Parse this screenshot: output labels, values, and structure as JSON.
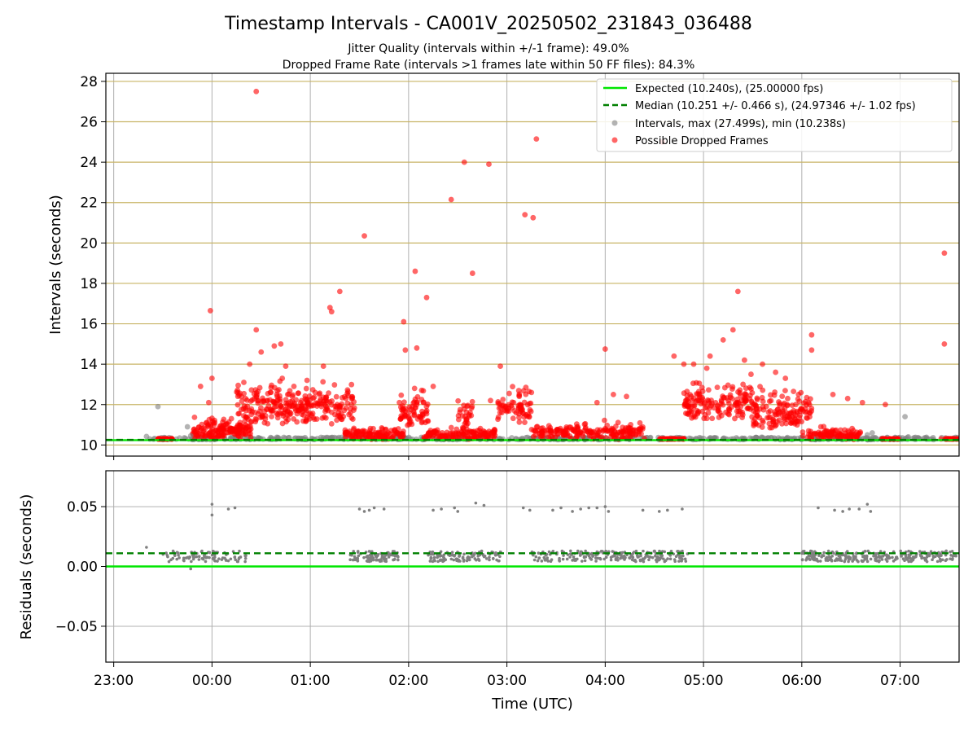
{
  "figure": {
    "title": "Timestamp Intervals - CA001V_20250502_231843_036488",
    "subtitle_1": "Jitter Quality (intervals within +/-1 frame): 49.0%",
    "subtitle_2": "Dropped Frame Rate (intervals >1 frames late within 50 FF files): 84.3%",
    "x_label": "Time (UTC)"
  },
  "colors": {
    "expected": "#00e600",
    "median": "#008000",
    "intervals": "#808080",
    "dropped": "#ff0000",
    "grid_top": "#c8b466",
    "grid_bottom": "#b0b0b0"
  },
  "chart_data": [
    {
      "type": "scatter",
      "panel": "top",
      "ylabel": "Intervals (seconds)",
      "xlabel": "",
      "ylim": [
        9.45,
        28.4
      ],
      "xlim_hours": [
        -1.08,
        7.6
      ],
      "x_tick_labels": [
        "23:00",
        "00:00",
        "01:00",
        "02:00",
        "03:00",
        "04:00",
        "05:00",
        "06:00",
        "07:00"
      ],
      "x_tick_hours": [
        -1,
        0,
        1,
        2,
        3,
        4,
        5,
        6,
        7
      ],
      "y_ticks": [
        10,
        12,
        14,
        16,
        18,
        20,
        22,
        24,
        26,
        28
      ],
      "y_tick_labels": [
        "10",
        "12",
        "14",
        "16",
        "18",
        "20",
        "22",
        "24",
        "26",
        "28"
      ],
      "grid": true,
      "legend_position": "top-right",
      "legend": [
        "Expected (10.240s), (25.00000 fps)",
        "Median (10.251 +/- 0.466 s), (24.97346 +/- 1.02 fps)",
        "Intervals, max (27.499s), min (10.238s)",
        "Possible Dropped Frames"
      ],
      "reference_lines": {
        "expected": 10.24,
        "median": 10.251
      },
      "series": [
        {
          "name": "Intervals, max (27.499s), min (10.238s)",
          "points": [
            [
              "23:20",
              10.42
            ],
            [
              "23:27",
              11.9
            ],
            [
              "23:45",
              10.9
            ],
            [
              "23:47",
              10.45
            ],
            [
              "06:40",
              10.5
            ],
            [
              "06:43",
              10.6
            ],
            [
              "07:03",
              11.4
            ],
            [
              "07:05",
              10.4
            ],
            [
              "23:22",
              10.3
            ],
            [
              "06:45",
              10.35
            ],
            [
              "07:10",
              10.3
            ]
          ]
        },
        {
          "name": "Possible Dropped Frames",
          "points": [
            [
              "23:59",
              16.65
            ],
            [
              "23:58",
              12.1
            ],
            [
              "00:00",
              13.3
            ],
            [
              "23:53",
              12.9
            ],
            [
              "00:27",
              27.5
            ],
            [
              "00:27",
              15.7
            ],
            [
              "00:23",
              14.0
            ],
            [
              "00:30",
              14.6
            ],
            [
              "00:38",
              14.9
            ],
            [
              "00:42",
              15.0
            ],
            [
              "00:45",
              13.9
            ],
            [
              "00:50",
              12.9
            ],
            [
              "00:58",
              13.2
            ],
            [
              "01:03",
              12.6
            ],
            [
              "01:08",
              13.9
            ],
            [
              "01:12",
              16.8
            ],
            [
              "01:13",
              16.6
            ],
            [
              "01:18",
              17.6
            ],
            [
              "01:25",
              12.0
            ],
            [
              "01:33",
              20.35
            ],
            [
              "01:57",
              16.1
            ],
            [
              "01:58",
              14.7
            ],
            [
              "02:04",
              18.6
            ],
            [
              "02:05",
              14.8
            ],
            [
              "02:11",
              17.3
            ],
            [
              "02:15",
              12.9
            ],
            [
              "02:26",
              22.15
            ],
            [
              "02:34",
              24.0
            ],
            [
              "02:39",
              18.5
            ],
            [
              "02:49",
              23.9
            ],
            [
              "02:50",
              12.2
            ],
            [
              "02:56",
              13.9
            ],
            [
              "03:11",
              21.4
            ],
            [
              "03:16",
              21.25
            ],
            [
              "03:18",
              25.15
            ],
            [
              "03:15",
              12.6
            ],
            [
              "03:55",
              12.1
            ],
            [
              "04:00",
              14.75
            ],
            [
              "04:05",
              12.5
            ],
            [
              "04:13",
              12.4
            ],
            [
              "04:35",
              25.0
            ],
            [
              "04:42",
              14.4
            ],
            [
              "04:48",
              14.0
            ],
            [
              "04:54",
              14.0
            ],
            [
              "05:02",
              13.8
            ],
            [
              "05:04",
              14.4
            ],
            [
              "05:12",
              15.2
            ],
            [
              "05:18",
              15.7
            ],
            [
              "05:21",
              17.6
            ],
            [
              "05:25",
              14.2
            ],
            [
              "05:29",
              13.5
            ],
            [
              "05:36",
              14.0
            ],
            [
              "05:44",
              13.6
            ],
            [
              "05:50",
              13.3
            ],
            [
              "05:58",
              12.5
            ],
            [
              "06:06",
              15.45
            ],
            [
              "06:06",
              14.7
            ],
            [
              "06:19",
              12.5
            ],
            [
              "06:28",
              12.3
            ],
            [
              "06:37",
              12.1
            ],
            [
              "06:51",
              12.0
            ],
            [
              "07:27",
              19.5
            ],
            [
              "07:27",
              15.0
            ],
            [
              "07:25",
              10.3
            ]
          ]
        }
      ]
    },
    {
      "type": "scatter",
      "panel": "bottom",
      "ylabel": "Residuals (seconds)",
      "xlabel": "Time (UTC)",
      "ylim": [
        -0.08,
        0.08
      ],
      "y_ticks": [
        -0.05,
        0.0,
        0.05
      ],
      "y_tick_labels": [
        "−0.05",
        "0.00",
        "0.05"
      ],
      "grid": true,
      "reference_lines": {
        "expected": 0.0,
        "median": 0.011
      },
      "series": [
        {
          "name": "Residuals",
          "points": [
            [
              "23:20",
              0.016
            ],
            [
              "23:47",
              -0.002
            ],
            [
              "00:00",
              0.052
            ],
            [
              "00:00",
              0.043
            ],
            [
              "00:10",
              0.048
            ],
            [
              "00:14",
              0.049
            ],
            [
              "01:30",
              0.048
            ],
            [
              "01:33",
              0.046
            ],
            [
              "01:36",
              0.047
            ],
            [
              "01:39",
              0.049
            ],
            [
              "01:45",
              0.048
            ],
            [
              "02:15",
              0.047
            ],
            [
              "02:20",
              0.048
            ],
            [
              "02:28",
              0.049
            ],
            [
              "02:30",
              0.046
            ],
            [
              "02:41",
              0.053
            ],
            [
              "02:46",
              0.051
            ],
            [
              "03:10",
              0.049
            ],
            [
              "03:14",
              0.047
            ],
            [
              "03:28",
              0.047
            ],
            [
              "03:33",
              0.049
            ],
            [
              "03:40",
              0.046
            ],
            [
              "03:45",
              0.048
            ],
            [
              "03:50",
              0.049
            ],
            [
              "03:55",
              0.049
            ],
            [
              "04:00",
              0.05
            ],
            [
              "04:02",
              0.046
            ],
            [
              "04:23",
              0.047
            ],
            [
              "04:33",
              0.046
            ],
            [
              "04:38",
              0.047
            ],
            [
              "04:47",
              0.048
            ],
            [
              "06:10",
              0.049
            ],
            [
              "06:20",
              0.047
            ],
            [
              "06:25",
              0.046
            ],
            [
              "06:29",
              0.048
            ],
            [
              "06:35",
              0.048
            ],
            [
              "06:40",
              0.052
            ],
            [
              "06:42",
              0.046
            ]
          ]
        }
      ]
    }
  ]
}
